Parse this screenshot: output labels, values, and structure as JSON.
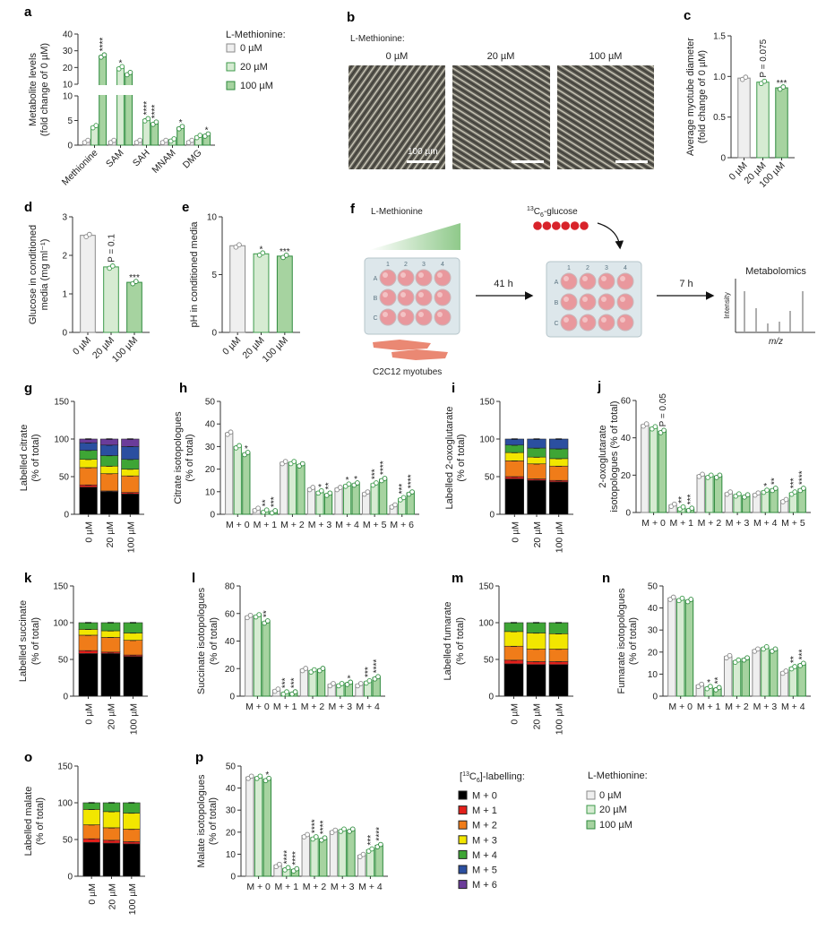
{
  "colors": {
    "fills": [
      "#efefef",
      "#d6ebd2",
      "#a6d3a0"
    ],
    "strokes": [
      "#8a8a8a",
      "#3c9a4a",
      "#2e8a3d"
    ],
    "gradient_green": "#8fc98a",
    "well_pink": "#e9989d",
    "bead_red": "#d8232a",
    "plate": "#dde7eb"
  },
  "isotopologue_colors": [
    "#000000",
    "#e3201b",
    "#f07c19",
    "#f2e600",
    "#3ea535",
    "#2b4fa0",
    "#6b3c9a"
  ],
  "legend_methionine_top": {
    "title": "L-Methionine:",
    "items": [
      "0 µM",
      "20 µM",
      "100 µM"
    ]
  },
  "legend_methionine_bottom": {
    "title": "L-Methionine:",
    "items": [
      "0 µM",
      "20 µM",
      "100 µM"
    ]
  },
  "legend_labelling": {
    "open": "[",
    "sup": "13",
    "element": "C",
    "sub": "6",
    "close": "]-labelling:",
    "items": [
      "M + 0",
      "M + 1",
      "M + 2",
      "M + 3",
      "M + 4",
      "M + 5",
      "M + 6"
    ]
  },
  "panel_b": {
    "label": "b",
    "title": "L-Methionine:",
    "images": [
      {
        "label": "0 µM",
        "scale_bar": "100 µm"
      },
      {
        "label": "20 µM"
      },
      {
        "label": "100 µM"
      }
    ]
  },
  "panel_f": {
    "label": "f",
    "methionine": "L-Methionine",
    "glucose_sup": "13",
    "glucose_element": "C",
    "glucose_sub": "6",
    "glucose_rest": "-glucose",
    "cells": "C2C12 myotubes",
    "step1": "41 h",
    "step2": "7 h",
    "readout": "Metabolomics",
    "spectrum_y": "Intensity",
    "spectrum_x": "m/z",
    "plate_columns": [
      "1",
      "2",
      "3",
      "4"
    ],
    "plate_rows": [
      "A",
      "B",
      "C"
    ]
  },
  "chart_data": [
    {
      "panel": "a",
      "type": "bar",
      "categories": [
        "Methionine",
        "SAM",
        "SAH",
        "MNAM",
        "DMG"
      ],
      "series": [
        {
          "name": "0 µM",
          "values": [
            0.8,
            0.8,
            0.8,
            0.8,
            0.8
          ]
        },
        {
          "name": "20 µM",
          "values": [
            3.8,
            20,
            5.2,
            1.1,
            1.8
          ]
        },
        {
          "name": "100 µM",
          "values": [
            27,
            16.5,
            4.5,
            3.6,
            2.1
          ]
        }
      ],
      "ylabel": [
        "Metabolite levels",
        "(fold change of 0 µM)"
      ],
      "ylim": [
        0,
        40
      ],
      "y_axis_break": [
        10,
        10
      ],
      "yticks": [
        "0",
        "5",
        "10"
      ],
      "yticks_upper": [
        "10",
        "20",
        "30",
        "40"
      ],
      "annotations": [
        {
          "category": 0,
          "series": 2,
          "text": "****"
        },
        {
          "category": 1,
          "series": 1,
          "text": "*"
        },
        {
          "category": 2,
          "series": 1,
          "text": "****"
        },
        {
          "category": 2,
          "series": 2,
          "text": "****"
        },
        {
          "category": 3,
          "series": 2,
          "text": "*"
        },
        {
          "category": 4,
          "series": 2,
          "text": "*"
        }
      ]
    },
    {
      "panel": "c",
      "type": "bar",
      "categories": [
        "0 µM",
        "20 µM",
        "100 µM"
      ],
      "values": [
        0.98,
        0.93,
        0.86
      ],
      "ylabel": [
        "Average myotube diameter",
        "(fold change of 0 µM)"
      ],
      "ylim": [
        0,
        1.5
      ],
      "yticks": [
        "0",
        "0.5",
        "1.0",
        "1.5"
      ],
      "annotations": [
        {
          "category": 1,
          "text": "P = 0.075"
        },
        {
          "category": 2,
          "text": "***"
        }
      ]
    },
    {
      "panel": "d",
      "type": "bar",
      "categories": [
        "0 µM",
        "20 µM",
        "100 µM"
      ],
      "values": [
        2.52,
        1.7,
        1.3
      ],
      "ylabel": [
        "Glucose in conditioned",
        "media (mg ml⁻¹)"
      ],
      "ylim": [
        0,
        3
      ],
      "yticks": [
        "0",
        "1",
        "2",
        "3"
      ],
      "annotations": [
        {
          "category": 1,
          "text": "P = 0.1"
        },
        {
          "category": 2,
          "text": "***"
        }
      ]
    },
    {
      "panel": "e",
      "type": "bar",
      "categories": [
        "0 µM",
        "20 µM",
        "100 µM"
      ],
      "values": [
        7.5,
        6.8,
        6.6
      ],
      "ylabel": [
        "pH in conditioned media"
      ],
      "ylim": [
        0,
        10
      ],
      "yticks": [
        "0",
        "5",
        "10"
      ],
      "annotations": [
        {
          "category": 1,
          "text": "*"
        },
        {
          "category": 2,
          "text": "***"
        }
      ]
    },
    {
      "panel": "g",
      "type": "stacked_bar",
      "categories": [
        "0 µM",
        "20 µM",
        "100 µM"
      ],
      "series": [
        {
          "name": "M + 0",
          "values": [
            36,
            30,
            27
          ]
        },
        {
          "name": "M + 1",
          "values": [
            3,
            1,
            2
          ]
        },
        {
          "name": "M + 2",
          "values": [
            23,
            23,
            22
          ]
        },
        {
          "name": "M + 3",
          "values": [
            11,
            10,
            9
          ]
        },
        {
          "name": "M + 4",
          "values": [
            12,
            14,
            13
          ]
        },
        {
          "name": "M + 5",
          "values": [
            10,
            14,
            17
          ]
        },
        {
          "name": "M + 6",
          "values": [
            5,
            8,
            10
          ]
        }
      ],
      "ylabel": [
        "Labelled citrate",
        "(% of total)"
      ],
      "ylim": [
        0,
        150
      ],
      "yticks": [
        "0",
        "50",
        "100",
        "150"
      ]
    },
    {
      "panel": "h",
      "type": "bar",
      "categories": [
        "M + 0",
        "M + 1",
        "M + 2",
        "M + 3",
        "M + 4",
        "M + 5",
        "M + 6"
      ],
      "series": [
        {
          "name": "0 µM",
          "values": [
            36,
            2.3,
            23,
            11.5,
            11.5,
            9.5,
            3.8
          ]
        },
        {
          "name": "20 µM",
          "values": [
            30,
            1.5,
            23,
            10,
            13,
            13.5,
            7
          ]
        },
        {
          "name": "100 µM",
          "values": [
            27,
            1.2,
            22,
            9,
            13.5,
            15.5,
            9.5
          ]
        }
      ],
      "ylabel": [
        "Citrate isotopologues",
        "(% of total)"
      ],
      "ylim": [
        0,
        50
      ],
      "yticks": [
        "0",
        "10",
        "20",
        "30",
        "40",
        "50"
      ],
      "annotations": [
        {
          "category": 0,
          "series": 2,
          "text": "*"
        },
        {
          "category": 1,
          "series": 1,
          "text": "**"
        },
        {
          "category": 1,
          "series": 2,
          "text": "***"
        },
        {
          "category": 3,
          "series": 1,
          "text": "*"
        },
        {
          "category": 3,
          "series": 2,
          "text": "**"
        },
        {
          "category": 4,
          "series": 1,
          "text": "*"
        },
        {
          "category": 4,
          "series": 2,
          "text": "*"
        },
        {
          "category": 5,
          "series": 1,
          "text": "***"
        },
        {
          "category": 5,
          "series": 2,
          "text": "****"
        },
        {
          "category": 6,
          "series": 1,
          "text": "***"
        },
        {
          "category": 6,
          "series": 2,
          "text": "****"
        }
      ]
    },
    {
      "panel": "i",
      "type": "stacked_bar",
      "categories": [
        "0 µM",
        "20 µM",
        "100 µM"
      ],
      "series": [
        {
          "name": "M + 0",
          "values": [
            47,
            45,
            43
          ]
        },
        {
          "name": "M + 1",
          "values": [
            3,
            2,
            2
          ]
        },
        {
          "name": "M + 2",
          "values": [
            21,
            20,
            19
          ]
        },
        {
          "name": "M + 3",
          "values": [
            11,
            9,
            10
          ]
        },
        {
          "name": "M + 4",
          "values": [
            10,
            12,
            13
          ]
        },
        {
          "name": "M + 5",
          "values": [
            8,
            12,
            13
          ]
        }
      ],
      "ylabel": [
        "Labelled 2-oxoglutarate",
        "(% of total)"
      ],
      "ylim": [
        0,
        150
      ],
      "yticks": [
        "0",
        "50",
        "100",
        "150"
      ]
    },
    {
      "panel": "j",
      "type": "bar",
      "categories": [
        "M + 0",
        "M + 1",
        "M + 2",
        "M + 3",
        "M + 4",
        "M + 5"
      ],
      "series": [
        {
          "name": "0 µM",
          "values": [
            47,
            4,
            20,
            10.5,
            10,
            6.5
          ]
        },
        {
          "name": "20 µM",
          "values": [
            45.5,
            2.5,
            19.5,
            9.5,
            11.5,
            10.5
          ]
        },
        {
          "name": "100 µM",
          "values": [
            43.5,
            1.8,
            19.5,
            9,
            12.5,
            12.5
          ]
        }
      ],
      "ylabel": [
        "2-oxoglutarate",
        "isotopologues (% of total)"
      ],
      "ylim": [
        0,
        60
      ],
      "yticks": [
        "0",
        "20",
        "40",
        "60"
      ],
      "annotations": [
        {
          "category": 0,
          "series": 2,
          "text": "P = 0.05"
        },
        {
          "category": 1,
          "series": 1,
          "text": "**"
        },
        {
          "category": 1,
          "series": 2,
          "text": "***"
        },
        {
          "category": 4,
          "series": 1,
          "text": "*"
        },
        {
          "category": 4,
          "series": 2,
          "text": "**"
        },
        {
          "category": 5,
          "series": 1,
          "text": "***"
        },
        {
          "category": 5,
          "series": 2,
          "text": "****"
        }
      ]
    },
    {
      "panel": "k",
      "type": "stacked_bar",
      "categories": [
        "0 µM",
        "20 µM",
        "100 µM"
      ],
      "series": [
        {
          "name": "M + 0",
          "values": [
            58,
            58,
            54
          ]
        },
        {
          "name": "M + 1",
          "values": [
            4,
            2,
            2
          ]
        },
        {
          "name": "M + 2",
          "values": [
            21,
            20,
            20
          ]
        },
        {
          "name": "M + 3",
          "values": [
            8,
            9,
            10
          ]
        },
        {
          "name": "M + 4",
          "values": [
            9,
            11,
            14
          ]
        }
      ],
      "ylabel": [
        "Labelled succinate",
        "(% of total)"
      ],
      "ylim": [
        0,
        150
      ],
      "yticks": [
        "0",
        "50",
        "100",
        "150"
      ]
    },
    {
      "panel": "l",
      "type": "bar",
      "categories": [
        "M + 0",
        "M + 1",
        "M + 2",
        "M + 3",
        "M + 4"
      ],
      "series": [
        {
          "name": "0 µM",
          "values": [
            58,
            4.5,
            19.5,
            8.5,
            8.5
          ]
        },
        {
          "name": "20 µM",
          "values": [
            58.5,
            2.5,
            18.5,
            8.5,
            10.5
          ]
        },
        {
          "name": "100 µM",
          "values": [
            54,
            2.5,
            19.5,
            9.5,
            13.5
          ]
        }
      ],
      "ylabel": [
        "Succinate isotopologues",
        "(% of total)"
      ],
      "ylim": [
        0,
        80
      ],
      "yticks": [
        "0",
        "20",
        "40",
        "60",
        "80"
      ],
      "annotations": [
        {
          "category": 0,
          "series": 2,
          "text": "**"
        },
        {
          "category": 1,
          "series": 1,
          "text": "***"
        },
        {
          "category": 1,
          "series": 2,
          "text": "***"
        },
        {
          "category": 3,
          "series": 2,
          "text": "*"
        },
        {
          "category": 4,
          "series": 1,
          "text": "***"
        },
        {
          "category": 4,
          "series": 2,
          "text": "****"
        }
      ]
    },
    {
      "panel": "m",
      "type": "stacked_bar",
      "categories": [
        "0 µM",
        "20 µM",
        "100 µM"
      ],
      "series": [
        {
          "name": "M + 0",
          "values": [
            44,
            43,
            43
          ]
        },
        {
          "name": "M + 1",
          "values": [
            5,
            4,
            4
          ]
        },
        {
          "name": "M + 2",
          "values": [
            19,
            17,
            17
          ]
        },
        {
          "name": "M + 3",
          "values": [
            20,
            22,
            21
          ]
        },
        {
          "name": "M + 4",
          "values": [
            12,
            14,
            15
          ]
        }
      ],
      "ylabel": [
        "Labelled fumarate",
        "(% of total)"
      ],
      "ylim": [
        0,
        150
      ],
      "yticks": [
        "0",
        "50",
        "100",
        "150"
      ]
    },
    {
      "panel": "n",
      "type": "bar",
      "categories": [
        "M + 0",
        "M + 1",
        "M + 2",
        "M + 3",
        "M + 4"
      ],
      "series": [
        {
          "name": "0 µM",
          "values": [
            44.5,
            5,
            18,
            21,
            11
          ]
        },
        {
          "name": "20 µM",
          "values": [
            44,
            4,
            16,
            22,
            13
          ]
        },
        {
          "name": "100 µM",
          "values": [
            43.5,
            3.5,
            17,
            21,
            14.5
          ]
        }
      ],
      "ylabel": [
        "Fumarate isotopologues",
        "(% of total)"
      ],
      "ylim": [
        0,
        50
      ],
      "yticks": [
        "0",
        "10",
        "20",
        "30",
        "40",
        "50"
      ],
      "annotations": [
        {
          "category": 1,
          "series": 1,
          "text": "*"
        },
        {
          "category": 1,
          "series": 2,
          "text": "**"
        },
        {
          "category": 4,
          "series": 1,
          "text": "**"
        },
        {
          "category": 4,
          "series": 2,
          "text": "***"
        }
      ]
    },
    {
      "panel": "o",
      "type": "stacked_bar",
      "categories": [
        "0 µM",
        "20 µM",
        "100 µM"
      ],
      "series": [
        {
          "name": "M + 0",
          "values": [
            46,
            45,
            44
          ]
        },
        {
          "name": "M + 1",
          "values": [
            5,
            4,
            3
          ]
        },
        {
          "name": "M + 2",
          "values": [
            19,
            17,
            17
          ]
        },
        {
          "name": "M + 3",
          "values": [
            21,
            22,
            22
          ]
        },
        {
          "name": "M + 4",
          "values": [
            9,
            12,
            14
          ]
        }
      ],
      "ylabel": [
        "Labelled malate",
        "(% of total)"
      ],
      "ylim": [
        0,
        150
      ],
      "yticks": [
        "0",
        "50",
        "100",
        "150"
      ]
    },
    {
      "panel": "p",
      "type": "bar",
      "categories": [
        "M + 0",
        "M + 1",
        "M + 2",
        "M + 3",
        "M + 4"
      ],
      "series": [
        {
          "name": "0 µM",
          "values": [
            45,
            5,
            18.5,
            20.5,
            9.5
          ]
        },
        {
          "name": "20 µM",
          "values": [
            45,
            3.5,
            17.5,
            21,
            12
          ]
        },
        {
          "name": "100 µM",
          "values": [
            44,
            3,
            17,
            21,
            14
          ]
        }
      ],
      "ylabel": [
        "Malate isotopologues",
        "(% of total)"
      ],
      "ylim": [
        0,
        50
      ],
      "yticks": [
        "0",
        "10",
        "20",
        "30",
        "40",
        "50"
      ],
      "annotations": [
        {
          "category": 0,
          "series": 2,
          "text": "*"
        },
        {
          "category": 1,
          "series": 1,
          "text": "****"
        },
        {
          "category": 1,
          "series": 2,
          "text": "****"
        },
        {
          "category": 2,
          "series": 1,
          "text": "****"
        },
        {
          "category": 2,
          "series": 2,
          "text": "****"
        },
        {
          "category": 4,
          "series": 1,
          "text": "***"
        },
        {
          "category": 4,
          "series": 2,
          "text": "****"
        }
      ]
    }
  ]
}
